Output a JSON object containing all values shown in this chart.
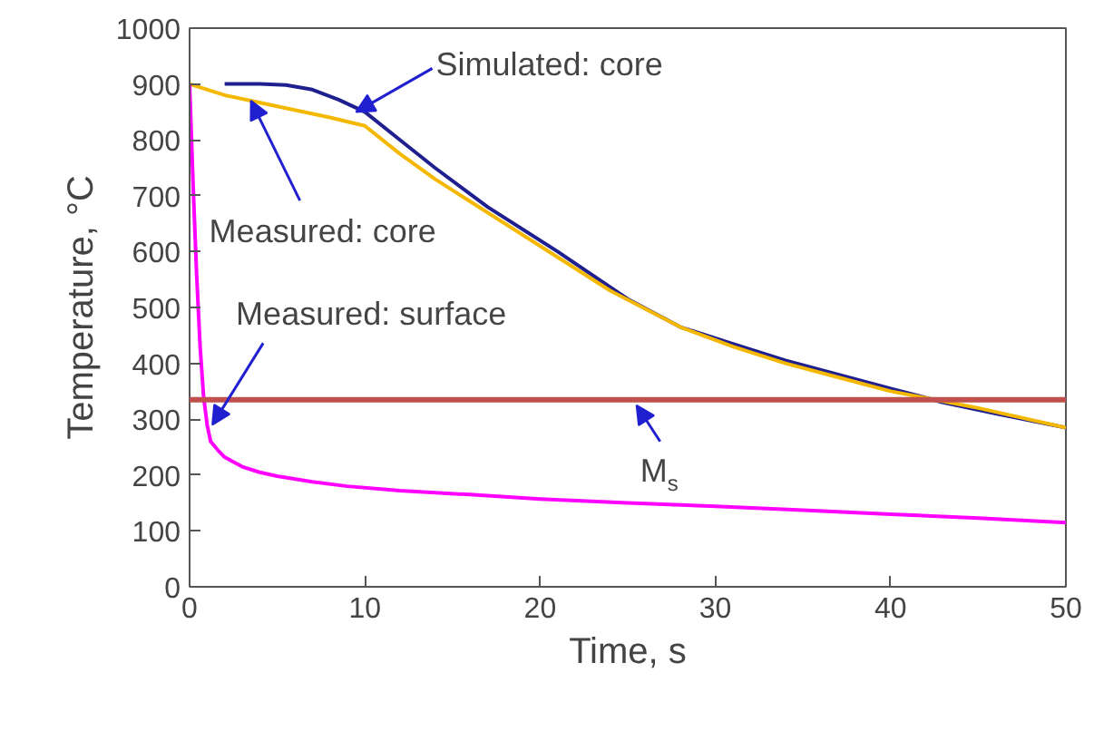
{
  "chart_data": {
    "type": "line",
    "xlabel": "Time, s",
    "ylabel": "Temperature, °C",
    "xlim": [
      0,
      50
    ],
    "ylim": [
      0,
      1000
    ],
    "xticks": [
      0,
      10,
      20,
      30,
      40,
      50
    ],
    "yticks": [
      0,
      100,
      200,
      300,
      400,
      500,
      600,
      700,
      800,
      900,
      1000
    ],
    "grid": false,
    "marker": "none",
    "line_style": "solid",
    "series": [
      {
        "color": "#1f1f8f",
        "x": [
          2,
          4,
          5.5,
          7,
          8.5,
          10,
          12,
          14,
          17,
          21,
          25,
          28,
          31,
          34,
          37,
          40,
          43,
          46,
          50
        ],
        "values": [
          900,
          900,
          898,
          890,
          872,
          850,
          800,
          750,
          680,
          600,
          515,
          465,
          435,
          405,
          380,
          355,
          330,
          310,
          285
        ]
      },
      {
        "color": "#f5b800",
        "x": [
          0,
          2,
          5,
          8,
          10,
          12,
          14,
          16,
          20,
          24,
          28,
          31,
          34,
          37,
          40,
          42,
          45,
          50
        ],
        "values": [
          900,
          880,
          860,
          840,
          825,
          775,
          730,
          690,
          610,
          530,
          465,
          430,
          400,
          375,
          350,
          338,
          320,
          285
        ]
      },
      {
        "color": "#ff00ff",
        "x": [
          0,
          0.2,
          0.4,
          0.6,
          0.8,
          1,
          1.2,
          1.6,
          2,
          3,
          4,
          5,
          7,
          9,
          12,
          16,
          20,
          25,
          30,
          35,
          40,
          45,
          50
        ],
        "values": [
          900,
          720,
          560,
          430,
          340,
          290,
          260,
          245,
          232,
          215,
          205,
          198,
          188,
          180,
          172,
          165,
          157,
          150,
          144,
          137,
          130,
          123,
          115
        ]
      }
    ],
    "ref_lines": [
      {
        "axis": "y",
        "value": 335,
        "color": "#c0504d"
      }
    ],
    "annotations": [
      {
        "text": "Simulated: core",
        "x": 9.5,
        "y": 850
      },
      {
        "text": "Measured: core",
        "x": 3.5,
        "y": 870
      },
      {
        "text": "Measured: surface",
        "x": 1.3,
        "y": 290
      },
      {
        "text": "M$_{s}$",
        "x": 25.5,
        "y": 325
      }
    ]
  }
}
